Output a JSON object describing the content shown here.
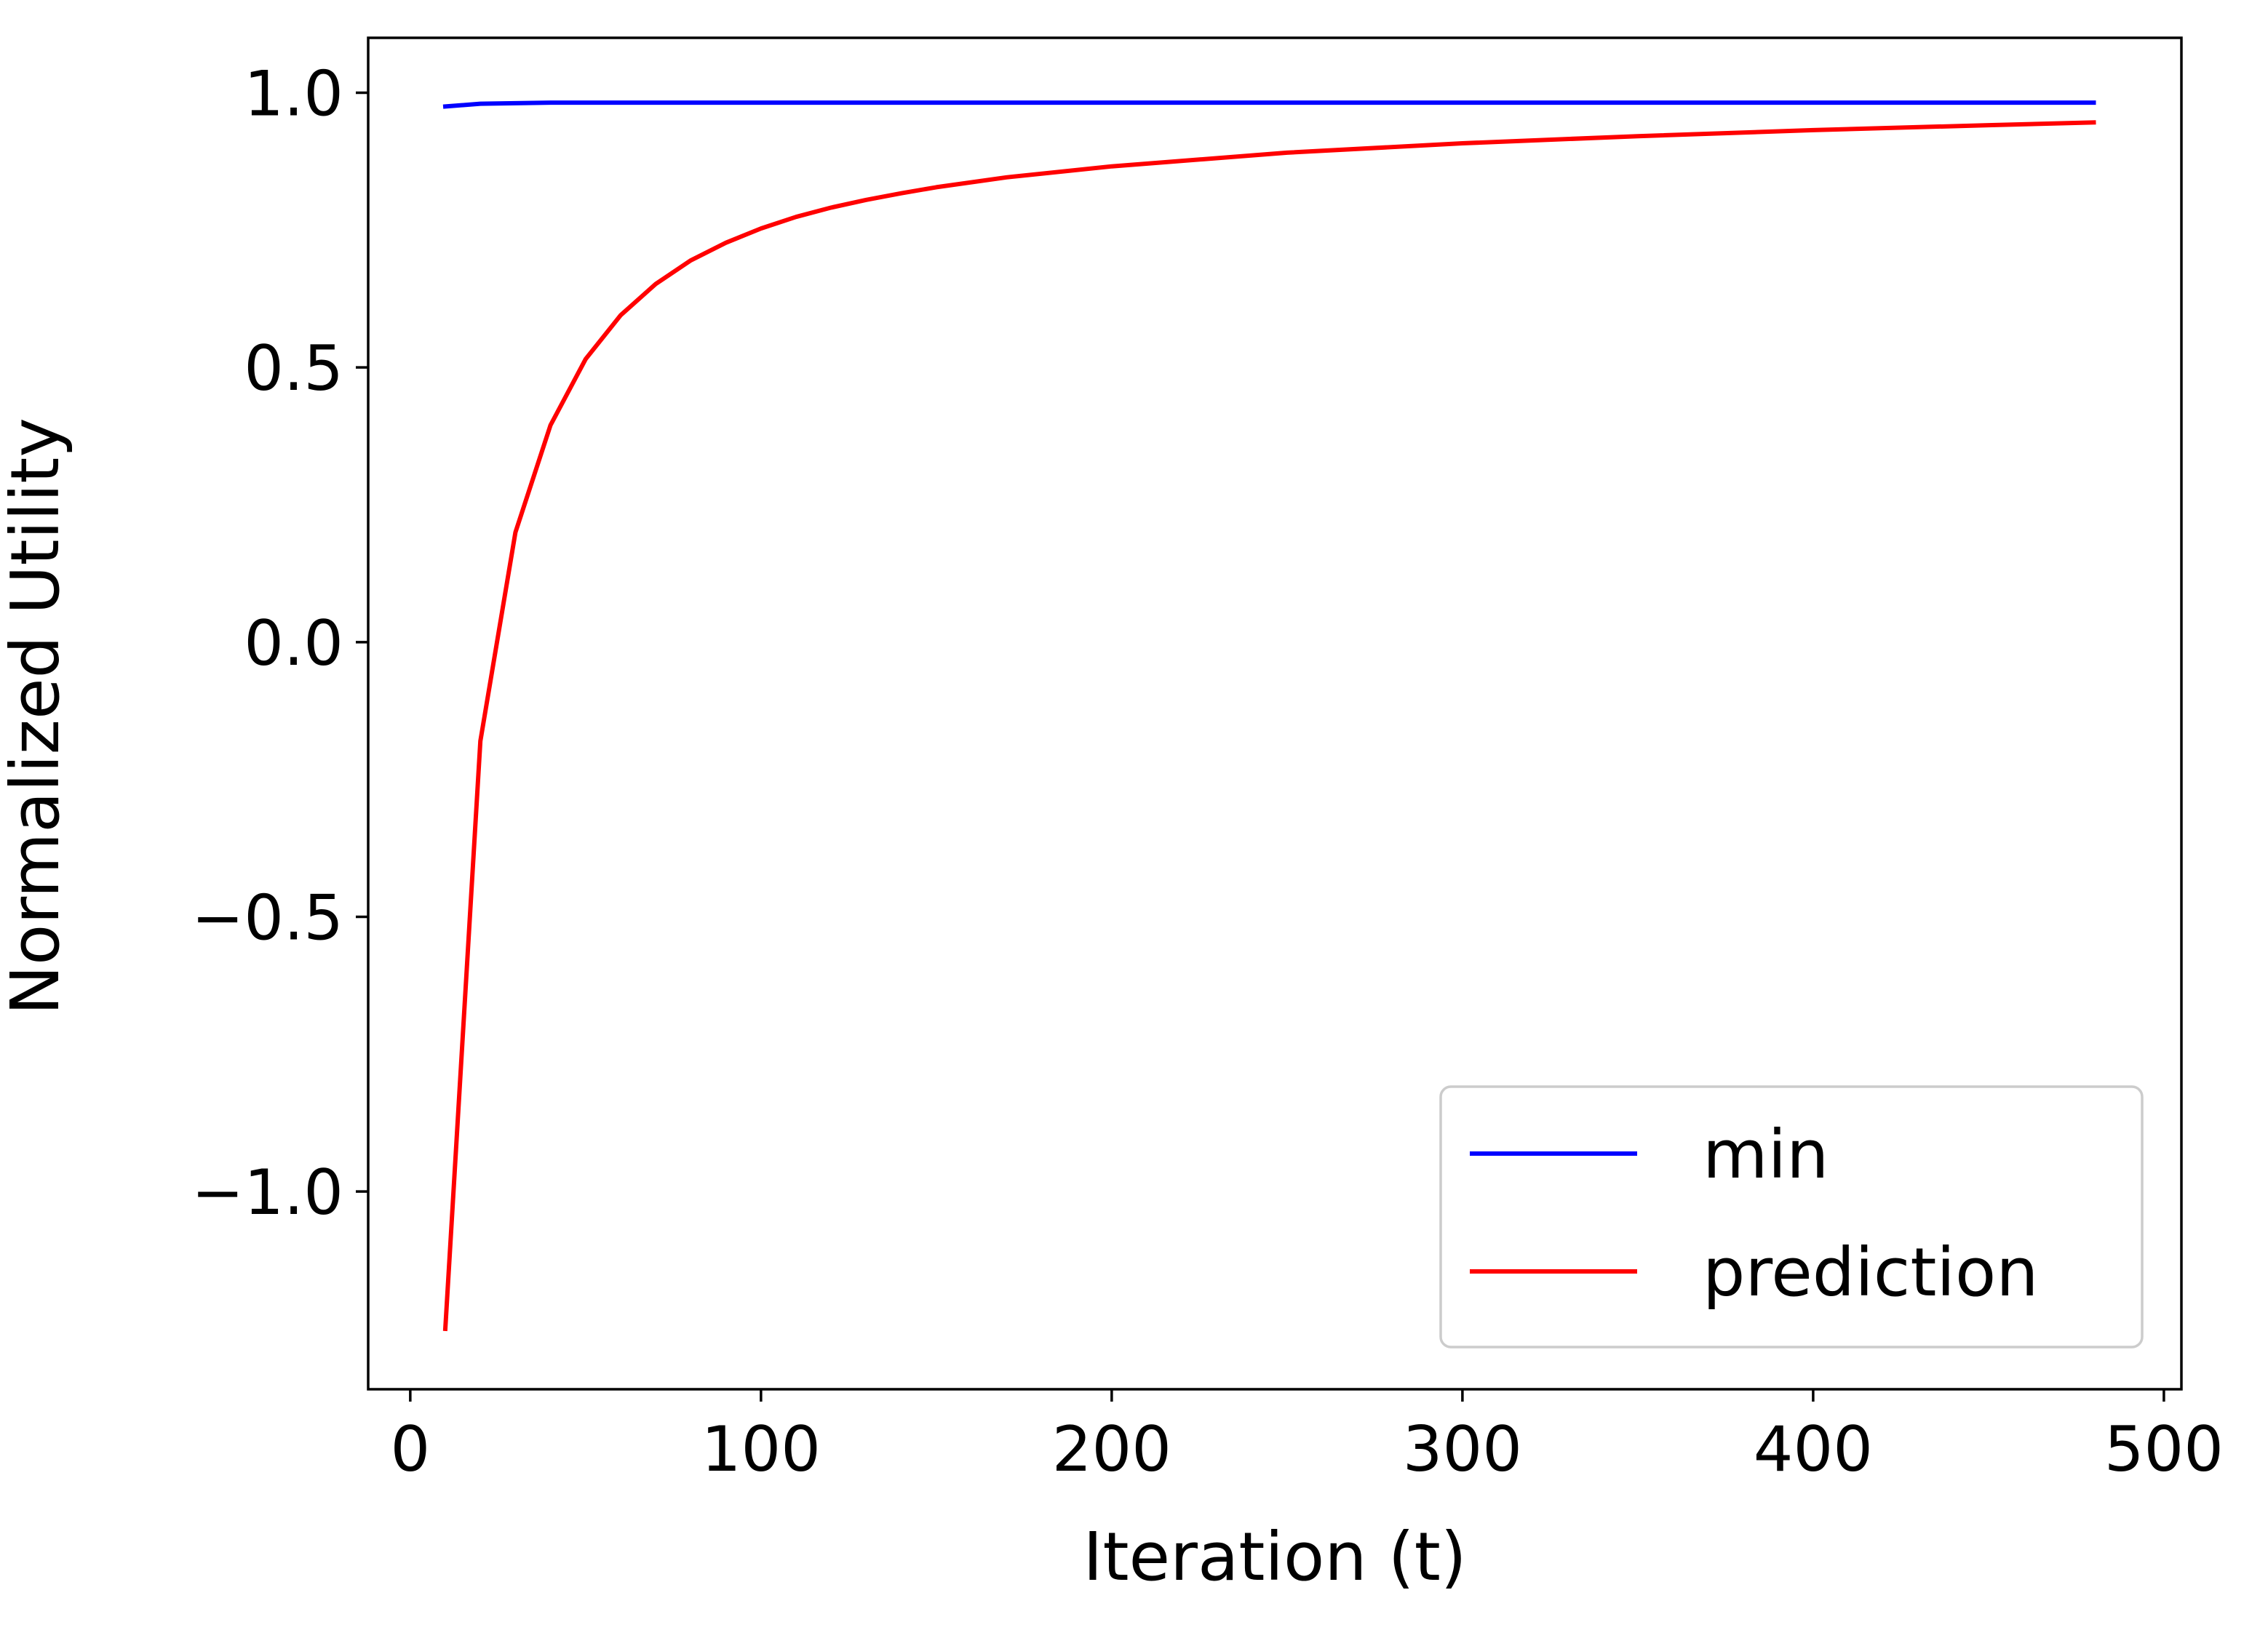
{
  "chart_data": {
    "type": "line",
    "xlabel": "Iteration (t)",
    "ylabel": "Normalized Utility",
    "xlim": [
      -12,
      505
    ],
    "ylim": [
      -1.36,
      1.1
    ],
    "xticks": [
      0,
      100,
      200,
      300,
      400,
      500
    ],
    "xtick_labels": [
      "0",
      "100",
      "200",
      "300",
      "400",
      "500"
    ],
    "yticks": [
      -1.0,
      -0.5,
      0.0,
      0.5,
      1.0
    ],
    "ytick_labels": [
      "−1.0",
      "−0.5",
      "0.0",
      "0.5",
      "1.0"
    ],
    "grid": false,
    "legend_position": "lower-right",
    "series": [
      {
        "name": "min",
        "color": "#0000ff",
        "x": [
          10,
          20,
          30,
          40,
          60,
          100,
          200,
          300,
          400,
          480
        ],
        "y": [
          0.975,
          0.98,
          0.981,
          0.982,
          0.982,
          0.982,
          0.982,
          0.982,
          0.982,
          0.982
        ]
      },
      {
        "name": "prediction",
        "color": "#ff0000",
        "x": [
          10,
          20,
          30,
          40,
          50,
          60,
          70,
          80,
          90,
          100,
          110,
          120,
          130,
          140,
          150,
          170,
          200,
          250,
          300,
          350,
          400,
          450,
          480
        ],
        "y": [
          -1.25,
          -0.18,
          0.2,
          0.395,
          0.515,
          0.595,
          0.652,
          0.695,
          0.727,
          0.753,
          0.774,
          0.791,
          0.805,
          0.817,
          0.828,
          0.846,
          0.866,
          0.891,
          0.908,
          0.921,
          0.932,
          0.941,
          0.946
        ]
      }
    ]
  }
}
